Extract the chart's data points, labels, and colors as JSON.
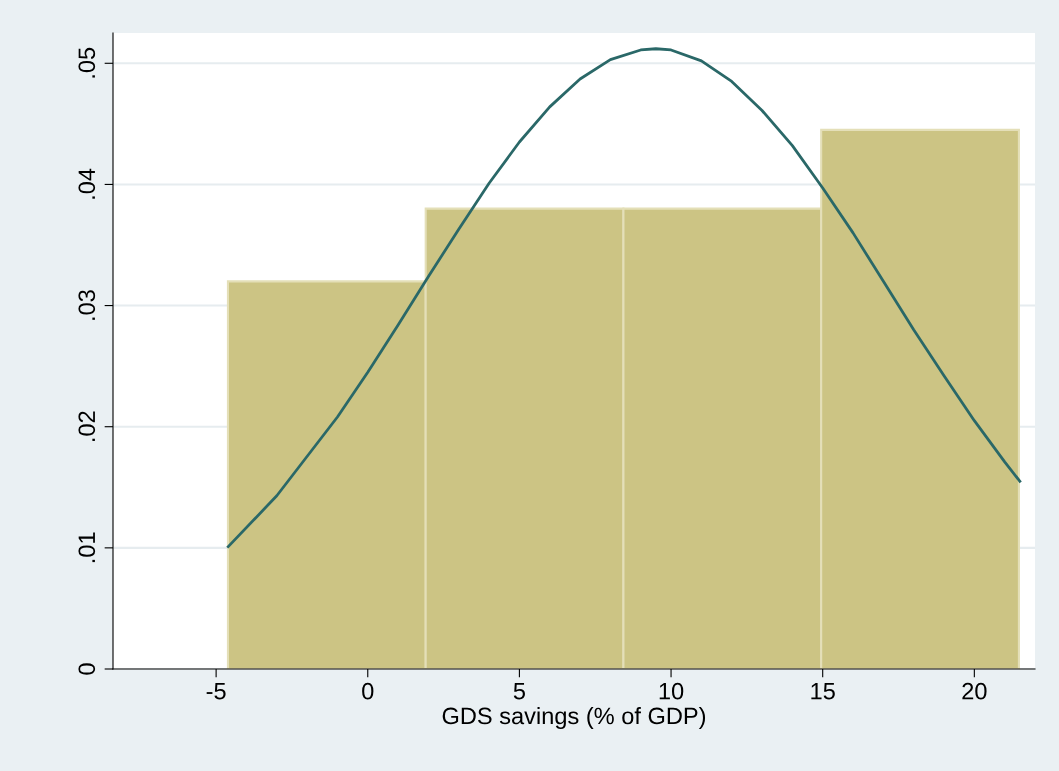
{
  "chart_data": {
    "type": "histogram",
    "xlabel": "GDS savings (% of GDP)",
    "bins": [
      -4.61,
      1.91,
      8.43,
      14.95,
      21.47
    ],
    "values": [
      0.032,
      0.038,
      0.038,
      0.0445
    ],
    "color": "#ccc484",
    "series": [
      {
        "type": "line",
        "color": "#2a6868",
        "x": [
          -4.6,
          -3,
          -1,
          0,
          1,
          2,
          3,
          4,
          5,
          6,
          7,
          8,
          9,
          9.5,
          10,
          11,
          12,
          13,
          14,
          15,
          16,
          17,
          18,
          19,
          20,
          21,
          21.5
        ],
        "values": [
          0.0101,
          0.0143,
          0.0208,
          0.0245,
          0.0284,
          0.0324,
          0.0363,
          0.0401,
          0.0435,
          0.0464,
          0.0487,
          0.0503,
          0.0511,
          0.0512,
          0.0511,
          0.0502,
          0.0485,
          0.0461,
          0.0432,
          0.0397,
          0.036,
          0.032,
          0.028,
          0.0242,
          0.0205,
          0.0171,
          0.0155
        ]
      }
    ],
    "xlim": [
      -8.4,
      22
    ],
    "xticks": [
      -5,
      0,
      5,
      10,
      15,
      20
    ],
    "ylim": [
      0,
      0.0525
    ],
    "yticks": [
      0,
      {
        "value": 0.01,
        "label": ".01"
      },
      {
        "value": 0.02,
        "label": ".02"
      },
      {
        "value": 0.03,
        "label": ".03"
      },
      {
        "value": 0.04,
        "label": ".04"
      },
      {
        "value": 0.05,
        "label": ".05"
      }
    ],
    "grid": "y"
  }
}
